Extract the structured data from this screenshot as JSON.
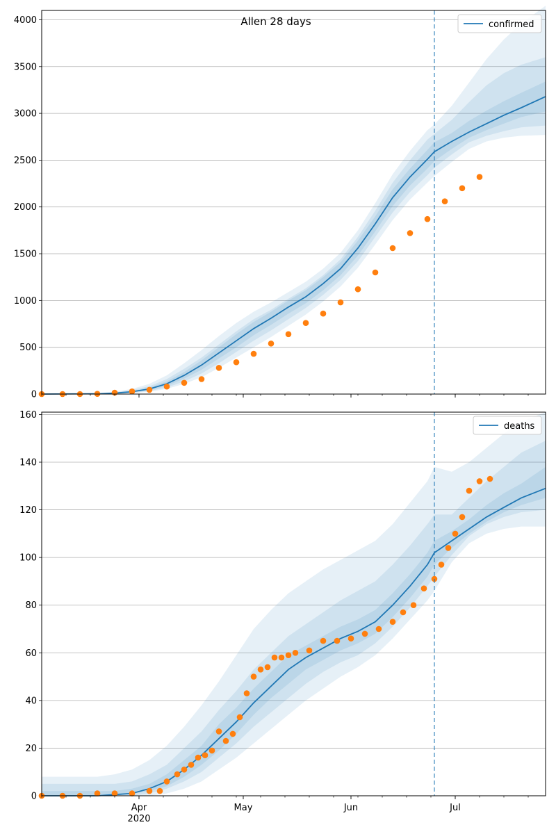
{
  "figure": {
    "title": "Allen 28 days",
    "x_tick_labels": [
      "Apr",
      "May",
      "Jun",
      "Jul"
    ],
    "x_year_label": "2020",
    "x_range": [
      "2020-03-04",
      "2020-07-27"
    ],
    "forecast_start": "2020-06-25"
  },
  "colors": {
    "model": "#1f77b4",
    "observed": "#ff7f0e",
    "band": "#1f77b4",
    "grid": "#b0b0b0",
    "axis": "#000000"
  },
  "chart_data": [
    {
      "type": "line",
      "panel": "confirmed",
      "title": "Allen 28 days",
      "xlabel": "",
      "ylabel": "",
      "ylim": [
        0,
        4100
      ],
      "yticks": [
        0,
        500,
        1000,
        1500,
        2000,
        2500,
        3000,
        3500,
        4000
      ],
      "legend": {
        "label": "confirmed",
        "location": "top-right"
      },
      "grid": "horizontal",
      "model": {
        "name": "confirmed",
        "x": [
          "2020-03-04",
          "2020-03-20",
          "2020-03-25",
          "2020-03-30",
          "2020-04-04",
          "2020-04-09",
          "2020-04-14",
          "2020-04-19",
          "2020-04-24",
          "2020-04-29",
          "2020-05-04",
          "2020-05-09",
          "2020-05-14",
          "2020-05-19",
          "2020-05-24",
          "2020-05-29",
          "2020-06-03",
          "2020-06-08",
          "2020-06-13",
          "2020-06-18",
          "2020-06-23",
          "2020-06-25",
          "2020-06-30",
          "2020-07-05",
          "2020-07-10",
          "2020-07-15",
          "2020-07-20",
          "2020-07-27"
        ],
        "y": [
          0,
          3,
          10,
          25,
          55,
          110,
          200,
          310,
          440,
          570,
          700,
          810,
          930,
          1040,
          1180,
          1340,
          1560,
          1820,
          2100,
          2320,
          2510,
          2590,
          2700,
          2800,
          2890,
          2980,
          3060,
          3180
        ],
        "bands": [
          {
            "lower": [
              0,
              0,
              2,
              10,
              25,
              55,
              110,
              180,
              280,
              390,
              500,
              610,
              730,
              850,
              990,
              1150,
              1350,
              1600,
              1860,
              2080,
              2260,
              2330,
              2480,
              2620,
              2700,
              2740,
              2760,
              2770
            ],
            "upper": [
              2,
              8,
              25,
              55,
              110,
              200,
              330,
              470,
              620,
              760,
              880,
              980,
              1090,
              1200,
              1340,
              1510,
              1750,
              2040,
              2350,
              2600,
              2820,
              2880,
              3080,
              3330,
              3580,
              3790,
              3960,
              4150
            ]
          },
          {
            "lower": [
              0,
              1,
              4,
              14,
              33,
              70,
              135,
              220,
              330,
              450,
              570,
              680,
              800,
              920,
              1060,
              1220,
              1420,
              1680,
              1940,
              2160,
              2340,
              2420,
              2560,
              2690,
              2760,
              2810,
              2850,
              2870
            ],
            "upper": [
              1,
              6,
              18,
              42,
              85,
              160,
              270,
              390,
              530,
              670,
              800,
              900,
              1020,
              1130,
              1270,
              1440,
              1680,
              1960,
              2260,
              2500,
              2720,
              2780,
              2930,
              3120,
              3300,
              3430,
              3520,
              3600
            ]
          },
          {
            "lower": [
              0,
              2,
              7,
              19,
              43,
              88,
              165,
              260,
              380,
              500,
              630,
              740,
              860,
              970,
              1110,
              1270,
              1480,
              1740,
              2010,
              2230,
              2410,
              2490,
              2620,
              2740,
              2820,
              2890,
              2960,
              3020
            ],
            "upper": [
              1,
              4,
              13,
              32,
              70,
              135,
              235,
              360,
              500,
              640,
              770,
              880,
              1000,
              1110,
              1250,
              1410,
              1640,
              1900,
              2190,
              2410,
              2610,
              2690,
              2790,
              2920,
              3030,
              3130,
              3220,
              3340
            ]
          }
        ]
      },
      "observed": {
        "name": "observed",
        "x": [
          "2020-03-04",
          "2020-03-10",
          "2020-03-15",
          "2020-03-20",
          "2020-03-25",
          "2020-03-30",
          "2020-04-04",
          "2020-04-09",
          "2020-04-14",
          "2020-04-19",
          "2020-04-24",
          "2020-04-29",
          "2020-05-04",
          "2020-05-09",
          "2020-05-14",
          "2020-05-19",
          "2020-05-24",
          "2020-05-29",
          "2020-06-03",
          "2020-06-08",
          "2020-06-13",
          "2020-06-18",
          "2020-06-23",
          "2020-06-28",
          "2020-07-03",
          "2020-07-08"
        ],
        "y": [
          0,
          0,
          0,
          2,
          15,
          28,
          45,
          80,
          120,
          160,
          280,
          340,
          430,
          540,
          640,
          760,
          860,
          980,
          1120,
          1300,
          1560,
          1720,
          1870,
          2060,
          2200,
          2320
        ]
      }
    },
    {
      "type": "line",
      "panel": "deaths",
      "title": "",
      "xlabel": "",
      "ylabel": "",
      "ylim": [
        0,
        161
      ],
      "yticks": [
        0,
        20,
        40,
        60,
        80,
        100,
        120,
        140,
        160
      ],
      "legend": {
        "label": "deaths",
        "location": "top-right"
      },
      "grid": "horizontal",
      "model": {
        "name": "deaths",
        "x": [
          "2020-03-04",
          "2020-03-20",
          "2020-03-25",
          "2020-03-30",
          "2020-04-04",
          "2020-04-09",
          "2020-04-14",
          "2020-04-19",
          "2020-04-24",
          "2020-04-29",
          "2020-05-04",
          "2020-05-09",
          "2020-05-14",
          "2020-05-19",
          "2020-05-24",
          "2020-05-29",
          "2020-06-03",
          "2020-06-08",
          "2020-06-13",
          "2020-06-18",
          "2020-06-23",
          "2020-06-25",
          "2020-06-30",
          "2020-07-05",
          "2020-07-10",
          "2020-07-15",
          "2020-07-20",
          "2020-07-27"
        ],
        "y": [
          0,
          0,
          0.5,
          1,
          3,
          6,
          11,
          17,
          24,
          31,
          39,
          46,
          53,
          58,
          62,
          66,
          69,
          73,
          80,
          88,
          97,
          102,
          107,
          112,
          117,
          121,
          125,
          129
        ],
        "bands": [
          {
            "lower": [
              0,
              0,
              0,
              0,
              0,
              1,
              3,
              6,
              11,
              16,
              22,
              28,
              34,
              40,
              45,
              50,
              54,
              59,
              66,
              74,
              82,
              86,
              98,
              106,
              110,
              112,
              113,
              113
            ],
            "upper": [
              8,
              8,
              9,
              11,
              15,
              21,
              29,
              38,
              48,
              59,
              70,
              78,
              85,
              90,
              95,
              99,
              103,
              107,
              114,
              123,
              132,
              138,
              136,
              140,
              146,
              152,
              157,
              161
            ]
          },
          {
            "lower": [
              0,
              0,
              0,
              0,
              1,
              3,
              6,
              10,
              16,
              22,
              29,
              35,
              41,
              47,
              52,
              56,
              59,
              64,
              71,
              79,
              88,
              92,
              101,
              109,
              114,
              117,
              119,
              120
            ],
            "upper": [
              5,
              5,
              5,
              6,
              9,
              13,
              20,
              27,
              36,
              44,
              53,
              60,
              67,
              72,
              77,
              82,
              86,
              90,
              97,
              105,
              114,
              118,
              118,
              125,
              132,
              138,
              144,
              149
            ]
          },
          {
            "lower": [
              0,
              0,
              0,
              1,
              2,
              4,
              8,
              13,
              19,
              26,
              34,
              41,
              47,
              53,
              57,
              61,
              64,
              68,
              75,
              83,
              92,
              97,
              104,
              110,
              115,
              119,
              122,
              125
            ],
            "upper": [
              2,
              2,
              2,
              3,
              5,
              9,
              15,
              21,
              30,
              37,
              45,
              52,
              59,
              63,
              67,
              71,
              74,
              78,
              85,
              93,
              102,
              107,
              111,
              116,
              122,
              127,
              131,
              138
            ]
          }
        ]
      },
      "observed": {
        "name": "observed",
        "x": [
          "2020-03-04",
          "2020-03-10",
          "2020-03-15",
          "2020-03-20",
          "2020-03-25",
          "2020-03-30",
          "2020-04-04",
          "2020-04-07",
          "2020-04-09",
          "2020-04-12",
          "2020-04-14",
          "2020-04-16",
          "2020-04-18",
          "2020-04-20",
          "2020-04-22",
          "2020-04-24",
          "2020-04-26",
          "2020-04-28",
          "2020-04-30",
          "2020-05-02",
          "2020-05-04",
          "2020-05-06",
          "2020-05-08",
          "2020-05-10",
          "2020-05-12",
          "2020-05-14",
          "2020-05-16",
          "2020-05-20",
          "2020-05-24",
          "2020-05-28",
          "2020-06-01",
          "2020-06-05",
          "2020-06-09",
          "2020-06-13",
          "2020-06-16",
          "2020-06-19",
          "2020-06-22",
          "2020-06-25",
          "2020-06-27",
          "2020-06-29",
          "2020-07-01",
          "2020-07-03",
          "2020-07-05",
          "2020-07-08",
          "2020-07-11"
        ],
        "y": [
          0,
          0,
          0,
          1,
          1,
          1,
          2,
          2,
          6,
          9,
          11,
          13,
          16,
          17,
          19,
          27,
          23,
          26,
          33,
          43,
          50,
          53,
          54,
          58,
          58,
          59,
          60,
          61,
          65,
          65,
          66,
          68,
          70,
          73,
          77,
          80,
          87,
          91,
          97,
          104,
          110,
          117,
          128,
          132,
          133
        ]
      }
    }
  ]
}
